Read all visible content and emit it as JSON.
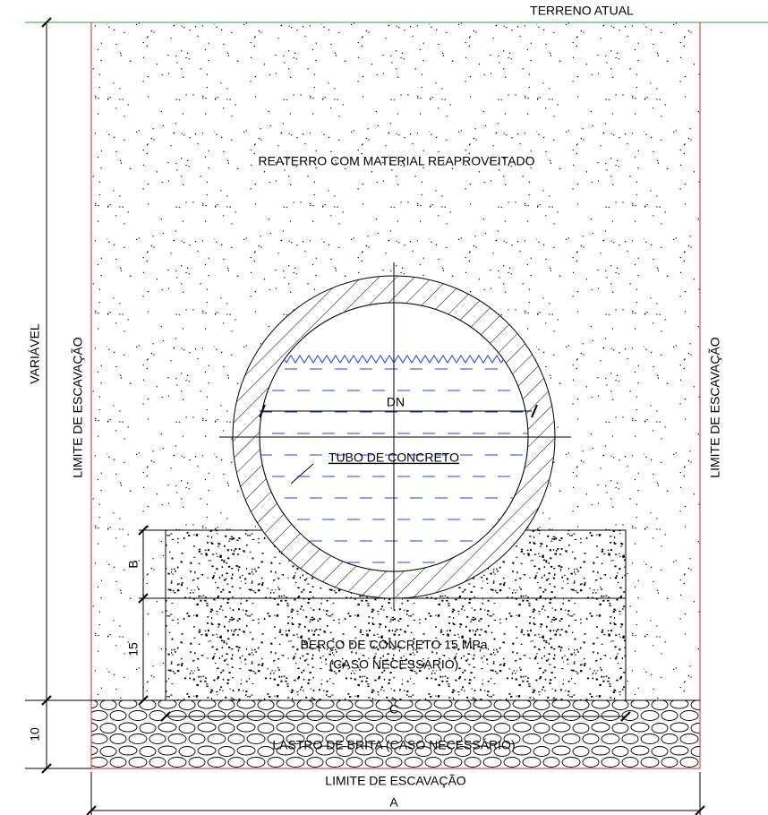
{
  "labels": {
    "ground": "TERRENO ATUAL",
    "backfill": "REATERRO COM MATERIAL REAPROVEITADO",
    "height": "VARIÁVEL",
    "left_limit": "LIMITE DE ESCAVAÇÃO",
    "right_limit": "LIMITE DE ESCAVAÇÃO",
    "diameter": "DN",
    "pipe": "TUBO DE CONCRETO",
    "bed_height": "B",
    "bed_thickness": "15",
    "bed_line1": "BERÇO DE CONCRETO 15 MPa",
    "bed_line2": "(CASO NECESSÁRIO)",
    "gravel_thickness": "10",
    "clearance": "C",
    "gravel": "LASTRO DE BRITA (CASO NECESSÁRIO)",
    "bottom_limit": "LIMITE DE ESCAVAÇÃO",
    "width": "A"
  }
}
